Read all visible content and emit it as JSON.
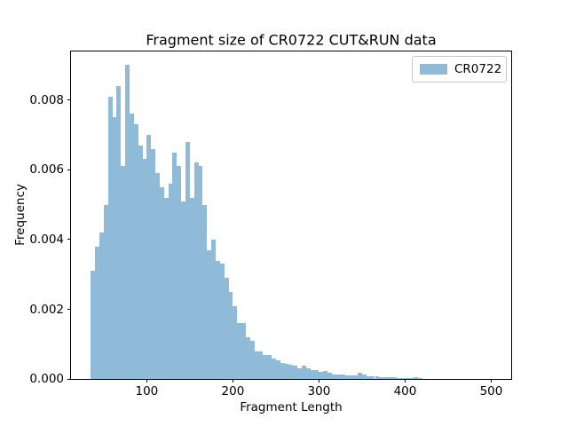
{
  "figure": {
    "title": "Fragment size of CR0722 CUT&RUN data",
    "xlabel": "Fragment Length",
    "ylabel": "Frequency"
  },
  "legend": {
    "label": "CR0722",
    "swatch_color": "#8FBBD9",
    "position": "upper right"
  },
  "axes": {
    "xtick_labels": [
      "100",
      "200",
      "300",
      "400",
      "500"
    ],
    "ytick_labels": [
      "0.000",
      "0.002",
      "0.004",
      "0.006",
      "0.008"
    ]
  },
  "chart_data": {
    "type": "bar",
    "subtype": "histogram",
    "title": "Fragment size of CR0722 CUT&RUN data",
    "xlabel": "Fragment Length",
    "ylabel": "Frequency",
    "grid": false,
    "legend_position": "upper right",
    "bar_color": "#8FBBD9",
    "xlim": [
      12,
      523.2
    ],
    "ylim": [
      0,
      0.0094
    ],
    "xticks": [
      100,
      200,
      300,
      400,
      500
    ],
    "yticks": [
      0,
      0.002,
      0.004,
      0.006,
      0.008
    ],
    "series": [
      {
        "name": "CR0722",
        "bin_start": 35,
        "bin_width": 5,
        "frequencies": [
          0.0031,
          0.0038,
          0.0042,
          0.005,
          0.0081,
          0.0075,
          0.0084,
          0.0061,
          0.009,
          0.0076,
          0.0073,
          0.0067,
          0.0063,
          0.007,
          0.0066,
          0.0059,
          0.0055,
          0.0052,
          0.0056,
          0.0065,
          0.0061,
          0.0051,
          0.0068,
          0.0052,
          0.0062,
          0.0061,
          0.005,
          0.0037,
          0.004,
          0.0034,
          0.0033,
          0.0029,
          0.0025,
          0.0021,
          0.0016,
          0.0016,
          0.0012,
          0.0011,
          0.0008,
          0.0008,
          0.0007,
          0.0007,
          0.0006,
          0.00055,
          0.00047,
          0.00043,
          0.00041,
          0.00039,
          0.0003,
          0.00039,
          0.0003,
          0.00026,
          0.00026,
          0.00022,
          0.00024,
          0.00018,
          0.00014,
          0.00014,
          0.00012,
          0.0001,
          0.0001,
          0.0001,
          0.00018,
          0.00014,
          9e-05,
          8e-05,
          7e-05,
          6e-05,
          6e-05,
          5e-05,
          5e-05,
          4e-05,
          2e-05,
          2e-05,
          2e-05,
          5e-05,
          4e-05,
          0,
          0,
          0,
          0,
          0,
          0,
          0,
          0,
          0,
          0,
          0,
          0,
          0,
          0,
          0,
          0
        ]
      }
    ]
  }
}
